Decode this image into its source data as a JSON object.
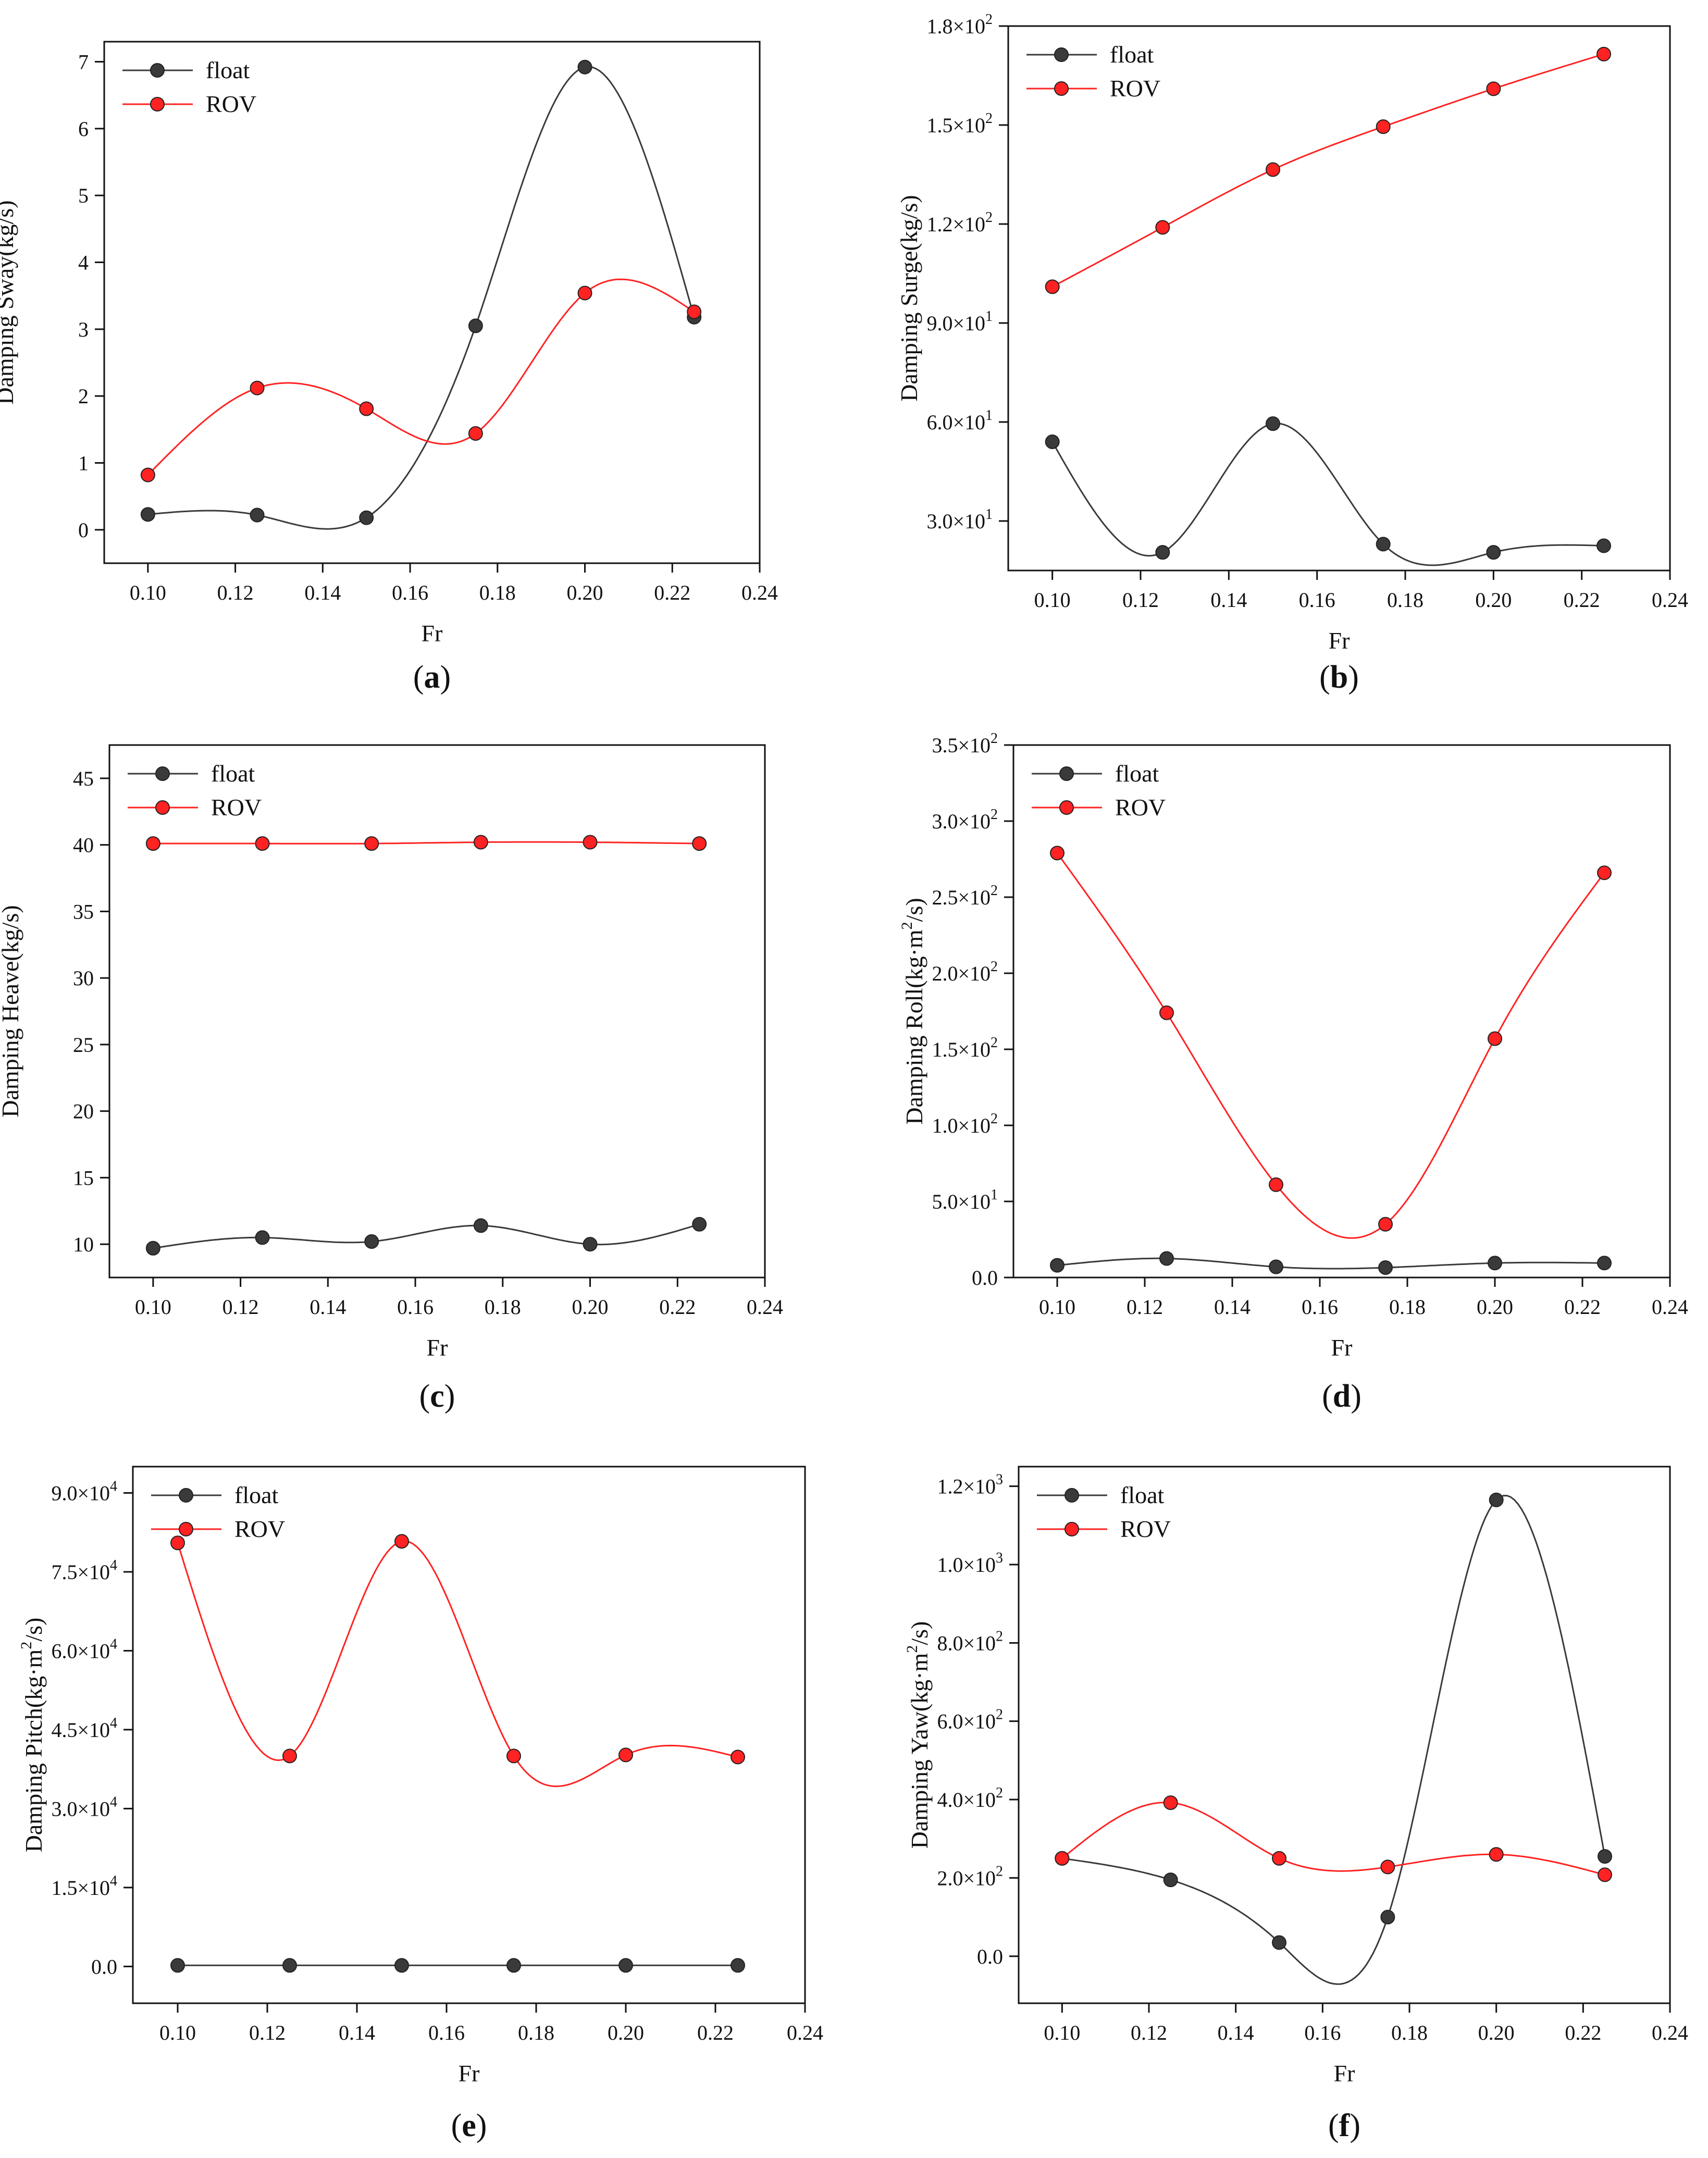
{
  "chart_data": [
    {
      "id": "a",
      "type": "line",
      "label_letter": "a",
      "xlabel": "Fr",
      "ylabel": "Damping Sway(kg/s)",
      "xlim": [
        0.09,
        0.24
      ],
      "ylim": [
        -0.5,
        7.3
      ],
      "xticks": [
        "0.10",
        "0.12",
        "0.14",
        "0.16",
        "0.18",
        "0.20",
        "0.22",
        "0.24"
      ],
      "xtick_values": [
        0.1,
        0.12,
        0.14,
        0.16,
        0.18,
        0.2,
        0.22,
        0.24
      ],
      "yticks": [
        "0",
        "1",
        "2",
        "3",
        "4",
        "5",
        "6",
        "7"
      ],
      "ytick_values": [
        0,
        1,
        2,
        3,
        4,
        5,
        6,
        7
      ],
      "legend_position": "top-left",
      "x": [
        0.1,
        0.125,
        0.15,
        0.175,
        0.2,
        0.225
      ],
      "series": [
        {
          "name": "float",
          "color": "#3a3a3a",
          "values": [
            0.23,
            0.22,
            0.18,
            3.05,
            6.92,
            3.18
          ]
        },
        {
          "name": "ROV",
          "color": "#ff2222",
          "values": [
            0.82,
            2.12,
            1.81,
            1.44,
            3.54,
            3.26
          ]
        }
      ]
    },
    {
      "id": "b",
      "type": "line",
      "label_letter": "b",
      "xlabel": "Fr",
      "ylabel": "Damping Surge(kg/s)",
      "xlim": [
        0.09,
        0.24
      ],
      "ylim": [
        15,
        180
      ],
      "xticks": [
        "0.10",
        "0.12",
        "0.14",
        "0.16",
        "0.18",
        "0.20",
        "0.22",
        "0.24"
      ],
      "xtick_values": [
        0.1,
        0.12,
        0.14,
        0.16,
        0.18,
        0.2,
        0.22,
        0.24
      ],
      "yticks": [
        [
          "3.0",
          "1"
        ],
        [
          "6.0",
          "1"
        ],
        [
          "9.0",
          "1"
        ],
        [
          "1.2",
          "2"
        ],
        [
          "1.5",
          "2"
        ],
        [
          "1.8",
          "2"
        ]
      ],
      "ytick_values": [
        30,
        60,
        90,
        120,
        150,
        180
      ],
      "legend_position": "top-left",
      "x": [
        0.1,
        0.125,
        0.15,
        0.175,
        0.2,
        0.225
      ],
      "series": [
        {
          "name": "float",
          "color": "#3a3a3a",
          "values": [
            54,
            20.5,
            59.5,
            23,
            20.5,
            22.5
          ]
        },
        {
          "name": "ROV",
          "color": "#ff2222",
          "values": [
            101,
            119,
            136.5,
            149.5,
            161,
            171.5
          ]
        }
      ]
    },
    {
      "id": "c",
      "type": "line",
      "label_letter": "c",
      "xlabel": "Fr",
      "ylabel": "Damping Heave(kg/s)",
      "xlim": [
        0.09,
        0.24
      ],
      "ylim": [
        7.5,
        47.5
      ],
      "xticks": [
        "0.10",
        "0.12",
        "0.14",
        "0.16",
        "0.18",
        "0.20",
        "0.22",
        "0.24"
      ],
      "xtick_values": [
        0.1,
        0.12,
        0.14,
        0.16,
        0.18,
        0.2,
        0.22,
        0.24
      ],
      "yticks": [
        "10",
        "15",
        "20",
        "25",
        "30",
        "35",
        "40",
        "45"
      ],
      "ytick_values": [
        10,
        15,
        20,
        25,
        30,
        35,
        40,
        45
      ],
      "legend_position": "top-left",
      "x": [
        0.1,
        0.125,
        0.15,
        0.175,
        0.2,
        0.225
      ],
      "series": [
        {
          "name": "float",
          "color": "#3a3a3a",
          "values": [
            9.7,
            10.5,
            10.2,
            11.4,
            10.0,
            11.5
          ]
        },
        {
          "name": "ROV",
          "color": "#ff2222",
          "values": [
            40.1,
            40.1,
            40.1,
            40.2,
            40.2,
            40.1
          ]
        }
      ]
    },
    {
      "id": "d",
      "type": "line",
      "label_letter": "d",
      "xlabel": "Fr",
      "ylabel_main": "Damping Roll(kg·m",
      "ylabel_sup": "2",
      "ylabel_end": "/s)",
      "xlim": [
        0.09,
        0.24
      ],
      "ylim": [
        0,
        350
      ],
      "xticks": [
        "0.10",
        "0.12",
        "0.14",
        "0.16",
        "0.18",
        "0.20",
        "0.22",
        "0.24"
      ],
      "xtick_values": [
        0.1,
        0.12,
        0.14,
        0.16,
        0.18,
        0.2,
        0.22,
        0.24
      ],
      "yticks": [
        [
          "0.0",
          ""
        ],
        [
          "5.0",
          "1"
        ],
        [
          "1.0",
          "2"
        ],
        [
          "1.5",
          "2"
        ],
        [
          "2.0",
          "2"
        ],
        [
          "2.5",
          "2"
        ],
        [
          "3.0",
          "2"
        ],
        [
          "3.5",
          "2"
        ]
      ],
      "ytick_values": [
        0,
        50,
        100,
        150,
        200,
        250,
        300,
        350
      ],
      "legend_position": "top-left",
      "x": [
        0.1,
        0.125,
        0.15,
        0.175,
        0.2,
        0.225
      ],
      "series": [
        {
          "name": "float",
          "color": "#3a3a3a",
          "values": [
            8,
            12.5,
            7,
            6.5,
            9.5,
            9.5
          ]
        },
        {
          "name": "ROV",
          "color": "#ff2222",
          "values": [
            279,
            174,
            61,
            35,
            157,
            266
          ]
        }
      ]
    },
    {
      "id": "e",
      "type": "line",
      "label_letter": "e",
      "xlabel": "Fr",
      "ylabel_main": "Damping Pitch(kg·m",
      "ylabel_sup": "2",
      "ylabel_end": "/s)",
      "xlim": [
        0.09,
        0.24
      ],
      "ylim": [
        -7000,
        95000
      ],
      "xticks": [
        "0.10",
        "0.12",
        "0.14",
        "0.16",
        "0.18",
        "0.20",
        "0.22",
        "0.24"
      ],
      "xtick_values": [
        0.1,
        0.12,
        0.14,
        0.16,
        0.18,
        0.2,
        0.22,
        0.24
      ],
      "yticks": [
        [
          "0.0",
          ""
        ],
        [
          "1.5",
          "4"
        ],
        [
          "3.0",
          "4"
        ],
        [
          "4.5",
          "4"
        ],
        [
          "6.0",
          "4"
        ],
        [
          "7.5",
          "4"
        ],
        [
          "9.0",
          "4"
        ]
      ],
      "ytick_values": [
        0,
        15000,
        30000,
        45000,
        60000,
        75000,
        90000
      ],
      "legend_position": "top-left",
      "x": [
        0.1,
        0.125,
        0.15,
        0.175,
        0.2,
        0.225
      ],
      "series": [
        {
          "name": "float",
          "color": "#3a3a3a",
          "values": [
            200,
            200,
            200,
            200,
            200,
            200
          ]
        },
        {
          "name": "ROV",
          "color": "#ff2222",
          "values": [
            80500,
            40000,
            80800,
            40000,
            40200,
            39800
          ]
        }
      ]
    },
    {
      "id": "f",
      "type": "line",
      "label_letter": "f",
      "xlabel": "Fr",
      "ylabel_main": "Damping Yaw(kg·m",
      "ylabel_sup": "2",
      "ylabel_end": "/s)",
      "xlim": [
        0.09,
        0.24
      ],
      "ylim": [
        -120,
        1250
      ],
      "xticks": [
        "0.10",
        "0.12",
        "0.14",
        "0.16",
        "0.18",
        "0.20",
        "0.22",
        "0.24"
      ],
      "xtick_values": [
        0.1,
        0.12,
        0.14,
        0.16,
        0.18,
        0.2,
        0.22,
        0.24
      ],
      "yticks": [
        [
          "0.0",
          ""
        ],
        [
          "2.0",
          "2"
        ],
        [
          "4.0",
          "2"
        ],
        [
          "6.0",
          "2"
        ],
        [
          "8.0",
          "2"
        ],
        [
          "1.0",
          "3"
        ],
        [
          "1.2",
          "3"
        ]
      ],
      "ytick_values": [
        0,
        200,
        400,
        600,
        800,
        1000,
        1200
      ],
      "legend_position": "top-left",
      "x": [
        0.1,
        0.125,
        0.15,
        0.175,
        0.2,
        0.225
      ],
      "series": [
        {
          "name": "float",
          "color": "#3a3a3a",
          "values": [
            250,
            195,
            35,
            100,
            1165,
            255
          ]
        },
        {
          "name": "ROV",
          "color": "#ff2222",
          "values": [
            250,
            392,
            250,
            228,
            260,
            208
          ]
        }
      ]
    }
  ]
}
